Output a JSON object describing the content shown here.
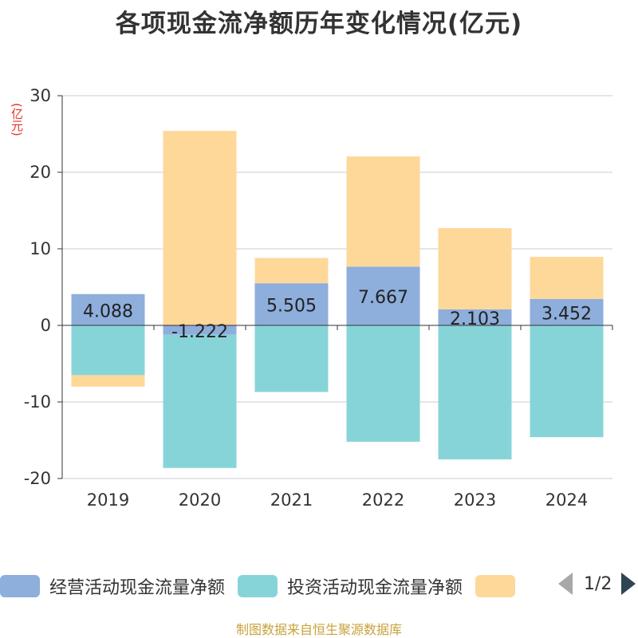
{
  "chart_data": {
    "type": "bar",
    "stacked": true,
    "title": "各项现金流净额历年变化情况(亿元)",
    "ylabel": "(亿元)",
    "xlabel": "",
    "ylim": [
      -20,
      30
    ],
    "yticks": [
      30,
      20,
      10,
      0,
      -10,
      -20
    ],
    "ytick_labels": [
      "30",
      "20",
      "10",
      "0",
      "-10",
      "-20"
    ],
    "categories": [
      "2019",
      "2020",
      "2021",
      "2022",
      "2023",
      "2024"
    ],
    "series": [
      {
        "name": "经营活动现金流量净额",
        "color": "#8eaedc",
        "values": [
          4.088,
          -1.222,
          5.505,
          7.667,
          2.103,
          3.452
        ],
        "labels": [
          "4.088",
          "-1.222",
          "5.505",
          "7.667",
          "2.103",
          "3.452"
        ]
      },
      {
        "name": "投资活动现金流量净额",
        "color": "#87d4d8",
        "values": [
          -6.5,
          -17.4,
          -8.7,
          -15.2,
          -17.5,
          -14.6
        ]
      },
      {
        "name": "",
        "color": "#fed899",
        "values": [
          -1.5,
          25.4,
          3.3,
          14.4,
          10.6,
          5.5
        ]
      }
    ],
    "legend_position": "bottom",
    "grid": true
  },
  "legend": {
    "items": [
      {
        "label": "经营活动现金流量净额",
        "color": "#8eaedc"
      },
      {
        "label": "投资活动现金流量净额",
        "color": "#87d4d8"
      },
      {
        "label": "",
        "color": "#fed899"
      }
    ],
    "page_indicator": "1/2"
  },
  "source": "制图数据来自恒生聚源数据库"
}
